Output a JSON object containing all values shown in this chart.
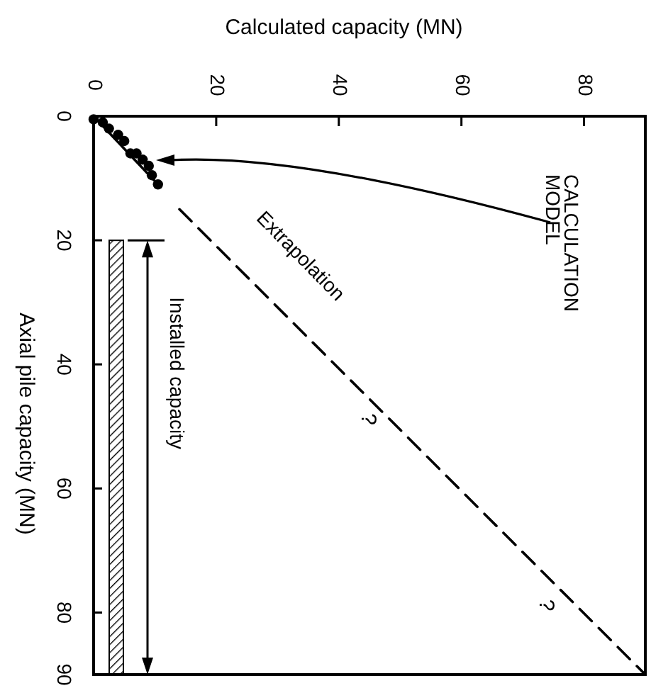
{
  "chart_data": {
    "type": "scatter",
    "xlabel": "Calculated capacity (MN)",
    "ylabel": "Axial pile capacity (MN)",
    "xlim": [
      0,
      90
    ],
    "xticks": [
      0,
      20,
      40,
      60,
      80
    ],
    "ylim": [
      90,
      0
    ],
    "yticks": [
      0,
      20,
      40,
      60,
      80,
      90
    ],
    "series": [
      {
        "color": "#000000",
        "marker": "circle",
        "x": [
          0,
          1.5,
          2.5,
          4,
          5,
          6,
          7,
          8,
          9,
          9.5,
          10.5
        ],
        "values": [
          0.5,
          1,
          2,
          3,
          4,
          6,
          6,
          7,
          8,
          9.5,
          11
        ]
      },
      {
        "type": "line",
        "color": "#000000",
        "line_style": "solid",
        "x": [
          0,
          10.5
        ],
        "values": [
          0,
          11
        ]
      },
      {
        "type": "line",
        "name": "Extrapolation",
        "color": "#000000",
        "line_style": "dashed",
        "x": [
          14,
          90
        ],
        "values": [
          15,
          90
        ]
      }
    ],
    "annotations": [
      "CALCULATION MODEL",
      "Installed capacity",
      {
        "text": "?",
        "x": 47,
        "y": 47
      },
      {
        "text": "?",
        "x": 76,
        "y": 77
      }
    ]
  }
}
